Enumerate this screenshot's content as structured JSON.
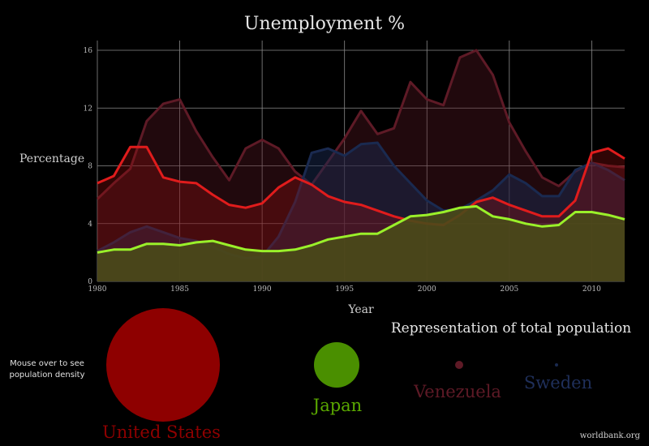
{
  "chart_data": {
    "type": "area",
    "title": "Unemployment %",
    "xlabel": "Year",
    "ylabel": "Percentage",
    "xlim": [
      1980,
      2012
    ],
    "ylim": [
      0,
      16
    ],
    "x_ticks": [
      1980,
      1985,
      1990,
      1995,
      2000,
      2005,
      2010
    ],
    "y_ticks": [
      0,
      4,
      8,
      12,
      16
    ],
    "grid": true,
    "x": [
      1980,
      1981,
      1982,
      1983,
      1984,
      1985,
      1986,
      1987,
      1988,
      1989,
      1990,
      1991,
      1992,
      1993,
      1994,
      1995,
      1996,
      1997,
      1998,
      1999,
      2000,
      2001,
      2002,
      2003,
      2004,
      2005,
      2006,
      2007,
      2008,
      2009,
      2010,
      2011,
      2012
    ],
    "series": [
      {
        "name": "Venezuela",
        "line_color": "#5e1a26",
        "fill_color": "#5e1a26",
        "fill_opacity": 0.35,
        "values": [
          5.7,
          6.8,
          7.8,
          11.1,
          12.3,
          12.6,
          10.4,
          8.6,
          7.0,
          9.2,
          9.8,
          9.2,
          7.6,
          6.7,
          8.3,
          9.9,
          11.8,
          10.2,
          10.6,
          13.8,
          12.6,
          12.2,
          15.5,
          16.0,
          14.3,
          11.0,
          9.0,
          7.2,
          6.6,
          7.6,
          8.2,
          8.0,
          7.9
        ]
      },
      {
        "name": "Sweden",
        "line_color": "#1a2a50",
        "fill_color": "#1a2a50",
        "fill_opacity": 0.5,
        "values": [
          2.1,
          2.7,
          3.4,
          3.8,
          3.4,
          3.0,
          2.8,
          2.4,
          1.9,
          1.6,
          1.7,
          3.1,
          5.5,
          8.9,
          9.2,
          8.7,
          9.5,
          9.6,
          8.0,
          6.8,
          5.6,
          4.9,
          5.0,
          5.6,
          6.3,
          7.4,
          6.8,
          5.9,
          5.9,
          7.7,
          8.2,
          7.7,
          7.0
        ]
      },
      {
        "name": "United States",
        "line_color": "#e01c1c",
        "fill_color": "#a01010",
        "fill_opacity": 0.3,
        "values": [
          6.8,
          7.3,
          9.3,
          9.3,
          7.2,
          6.9,
          6.8,
          6.0,
          5.3,
          5.1,
          5.4,
          6.5,
          7.2,
          6.7,
          5.9,
          5.5,
          5.3,
          4.9,
          4.5,
          4.2,
          4.0,
          3.9,
          4.6,
          5.5,
          5.8,
          5.3,
          4.9,
          4.5,
          4.5,
          5.6,
          8.9,
          9.2,
          8.5
        ]
      },
      {
        "name": "Japan",
        "line_color": "#9af02a",
        "fill_color": "#4a4a1a",
        "fill_opacity": 0.9,
        "values": [
          2.0,
          2.2,
          2.2,
          2.6,
          2.6,
          2.5,
          2.7,
          2.8,
          2.5,
          2.2,
          2.1,
          2.1,
          2.2,
          2.5,
          2.9,
          3.1,
          3.3,
          3.3,
          3.9,
          4.5,
          4.6,
          4.8,
          5.1,
          5.2,
          4.5,
          4.3,
          4.0,
          3.8,
          3.9,
          4.8,
          4.8,
          4.6,
          4.3
        ]
      }
    ]
  },
  "bubbles": {
    "note_lines": [
      "Mouse over to see",
      "population density"
    ],
    "heading": "Representation of total population",
    "items": [
      {
        "name": "United States",
        "color": "#8e0000",
        "label_color": "#8e0000"
      },
      {
        "name": "Japan",
        "color": "#4a8f00",
        "label_color": "#5aa800"
      },
      {
        "name": "Venezuela",
        "color": "#5e1a26",
        "label_color": "#5e1a26"
      },
      {
        "name": "Sweden",
        "color": "#1a2a50",
        "label_color": "#1f2f5a"
      }
    ]
  },
  "credit": "worldbank.org"
}
